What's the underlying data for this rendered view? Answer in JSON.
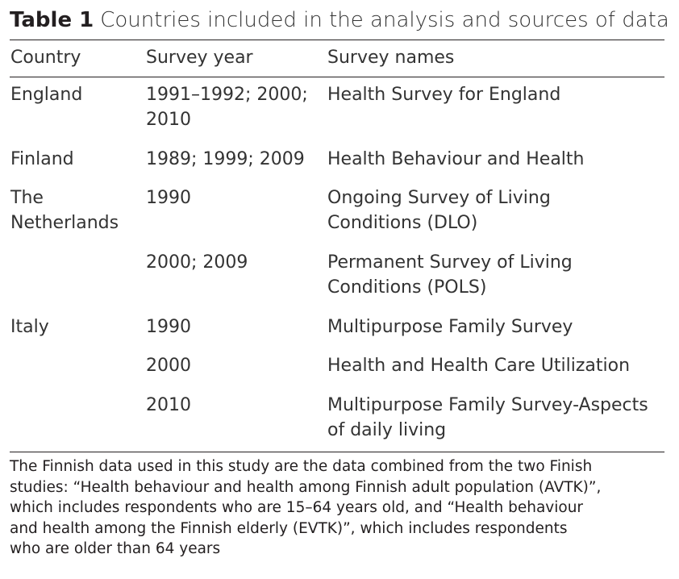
{
  "caption": {
    "label": "Table 1",
    "title": "Countries included in the analysis and sources of data"
  },
  "headers": [
    "Country",
    "Survey year",
    "Survey names"
  ],
  "rows": [
    {
      "country": [
        "England"
      ],
      "year": [
        "1991–1992; 2000;",
        "2010"
      ],
      "survey": [
        "Health Survey for England"
      ]
    },
    {
      "country": [
        "Finland"
      ],
      "year": [
        "1989; 1999; 2009"
      ],
      "survey": [
        "Health Behaviour and Health"
      ]
    },
    {
      "country": [
        "The",
        "Netherlands"
      ],
      "year": [
        "1990"
      ],
      "survey": [
        "Ongoing Survey of Living",
        "Conditions (DLO)"
      ]
    },
    {
      "country": [],
      "year": [
        "2000; 2009"
      ],
      "survey": [
        "Permanent Survey of Living",
        "Conditions (POLS)"
      ]
    },
    {
      "country": [
        "Italy"
      ],
      "year": [
        "1990"
      ],
      "survey": [
        "Multipurpose Family Survey"
      ]
    },
    {
      "country": [],
      "year": [
        "2000"
      ],
      "survey": [
        "Health and Health Care Utilization"
      ]
    },
    {
      "country": [],
      "year": [
        "2010"
      ],
      "survey": [
        "Multipurpose Family Survey-Aspects",
        "of daily living"
      ]
    }
  ],
  "footnote": [
    "The Finnish data used in this study are the data combined from the two Finish",
    "studies: “Health behaviour and health among Finnish adult population (AVTK)”,",
    "which includes respondents who are 15–64 years old, and “Health behaviour",
    "and health among the Finnish elderly (EVTK)”, which includes respondents",
    "who are older than 64 years"
  ]
}
